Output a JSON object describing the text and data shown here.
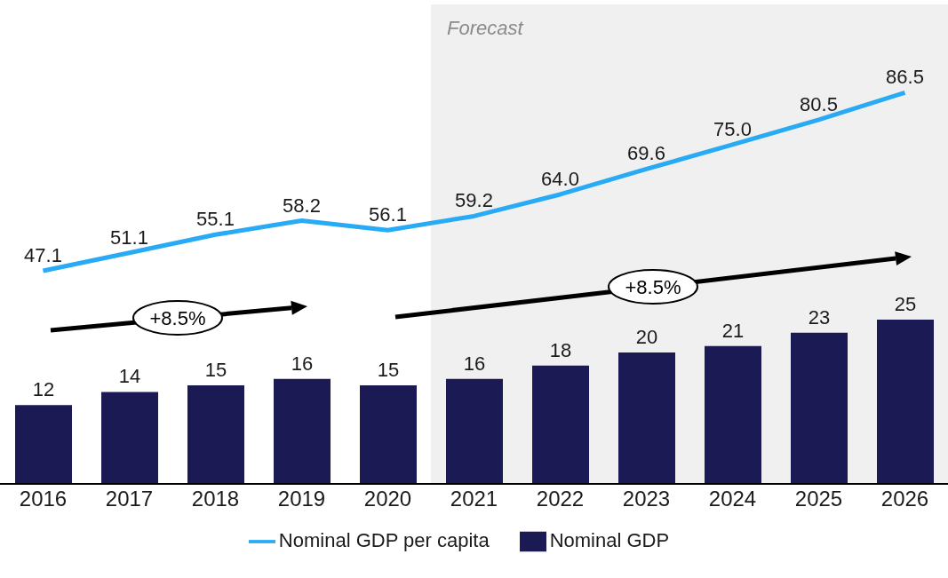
{
  "chart_data": {
    "type": "bar",
    "categories": [
      "2016",
      "2017",
      "2018",
      "2019",
      "2020",
      "2021",
      "2022",
      "2023",
      "2024",
      "2025",
      "2026"
    ],
    "series": [
      {
        "name": "Nominal GDP per capita",
        "type": "line",
        "axis": "y2",
        "color": "#29aaf4",
        "values": [
          47.1,
          51.1,
          55.1,
          58.2,
          56.1,
          59.2,
          64.0,
          69.6,
          75.0,
          80.5,
          86.5
        ],
        "value_labels": [
          "47.1",
          "51.1",
          "55.1",
          "58.2",
          "56.1",
          "59.2",
          "64.0",
          "69.6",
          "75.0",
          "80.5",
          "86.5"
        ]
      },
      {
        "name": "Nominal GDP",
        "color": "#1b1a55",
        "values": [
          12,
          14,
          15,
          16,
          15,
          16,
          18,
          20,
          21,
          23,
          25
        ]
      }
    ],
    "ylim": [
      0,
      73
    ],
    "y2lim": [
      0,
      106
    ],
    "tick_labels": "x",
    "data_labels": true,
    "legend": "bottom",
    "marker": "none",
    "bands": [
      {
        "axis": "x",
        "from": "2021",
        "to": "2026",
        "label": "Forecast",
        "color": "#f0f0f0"
      }
    ],
    "annotations": [
      "+8.5%",
      "+8.5%"
    ]
  }
}
